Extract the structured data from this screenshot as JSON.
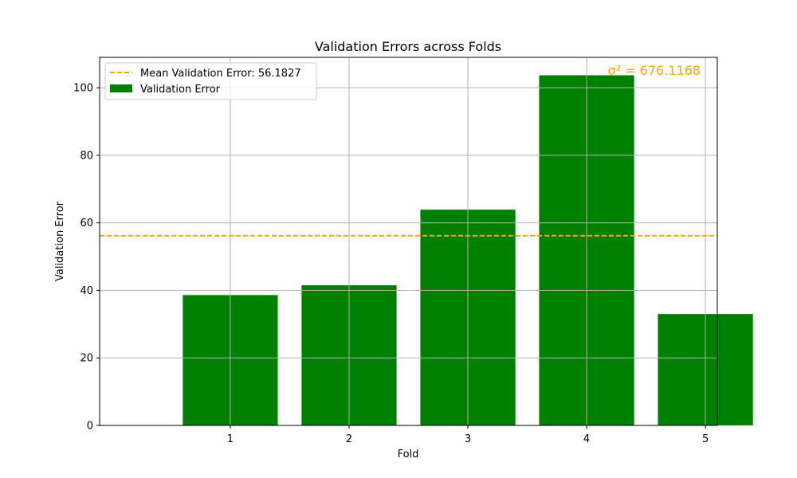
{
  "chart_data": {
    "type": "bar",
    "title": "Validation Errors across Folds",
    "xlabel": "Fold",
    "ylabel": "Validation Error",
    "categories": [
      "1",
      "2",
      "3",
      "4",
      "5"
    ],
    "values": [
      38.6,
      41.5,
      63.9,
      103.7,
      33.0
    ],
    "ylim": [
      0,
      109
    ],
    "yticks": [
      0,
      20,
      40,
      60,
      80,
      100
    ],
    "grid": true,
    "bar_color": "#008000",
    "reference_line": {
      "value": 56.1827,
      "label": "Mean Validation Error: 56.1827",
      "color": "#FFA500",
      "style": "dashed"
    },
    "legend": {
      "placement": "top-left",
      "entries": [
        "Mean Validation Error: 56.1827",
        "Validation Error"
      ]
    },
    "annotation": {
      "text": "σ² = 676.1168",
      "color": "#FFA500",
      "placement": "top-right"
    }
  }
}
